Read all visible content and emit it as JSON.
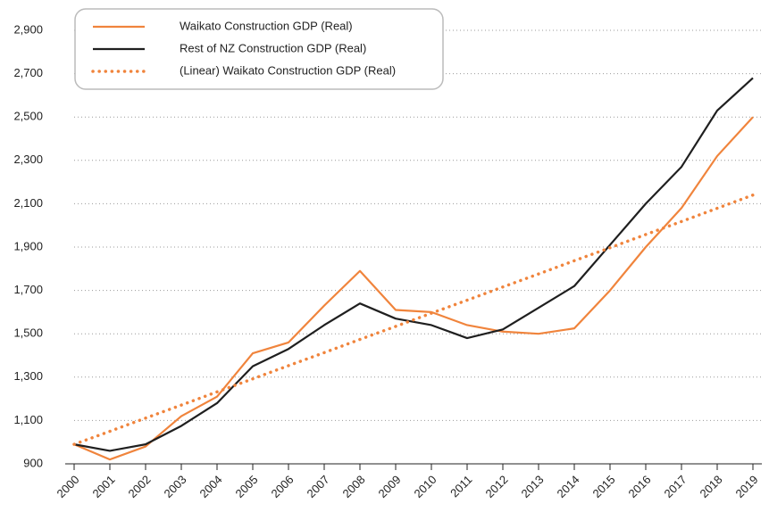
{
  "chart_data": {
    "type": "line",
    "categories": [
      "2000",
      "2001",
      "2002",
      "2003",
      "2004",
      "2005",
      "2006",
      "2007",
      "2008",
      "2009",
      "2010",
      "2011",
      "2012",
      "2013",
      "2014",
      "2015",
      "2016",
      "2017",
      "2018",
      "2019"
    ],
    "series": [
      {
        "name": "Waikato Construction GDP (Real)",
        "color": "#f0843c",
        "style": "solid",
        "values": [
          990,
          920,
          980,
          1120,
          1210,
          1410,
          1460,
          1630,
          1790,
          1610,
          1600,
          1540,
          1510,
          1500,
          1525,
          1700,
          1900,
          2080,
          2320,
          2500
        ]
      },
      {
        "name": "Rest of NZ Construction GDP (Real)",
        "color": "#1f1f1f",
        "style": "solid",
        "values": [
          990,
          960,
          990,
          1075,
          1180,
          1350,
          1430,
          1540,
          1640,
          1570,
          1540,
          1480,
          1520,
          1620,
          1720,
          1910,
          2100,
          2270,
          2530,
          2680
        ]
      },
      {
        "name": "(Linear) Waikato Construction GDP (Real)",
        "color": "#f0843c",
        "style": "dotted",
        "values": [
          990,
          1050,
          1111,
          1171,
          1232,
          1292,
          1353,
          1413,
          1474,
          1534,
          1595,
          1655,
          1716,
          1776,
          1837,
          1897,
          1958,
          2018,
          2079,
          2140
        ]
      }
    ],
    "ylim": [
      900,
      2900
    ],
    "yticks": [
      900,
      {
        "value": 1100,
        "label": "1,100"
      },
      {
        "value": 1300,
        "label": "1,300"
      },
      {
        "value": 1500,
        "label": "1,500"
      },
      {
        "value": 1700,
        "label": "1,700"
      },
      {
        "value": 1900,
        "label": "1,900"
      },
      {
        "value": 2100,
        "label": "2,100"
      },
      {
        "value": 2300,
        "label": "2,300"
      },
      {
        "value": 2500,
        "label": "2,500"
      },
      {
        "value": 2700,
        "label": "2,700"
      },
      {
        "value": 2900,
        "label": "2,900"
      }
    ],
    "grid": true,
    "legend": "top-left"
  }
}
